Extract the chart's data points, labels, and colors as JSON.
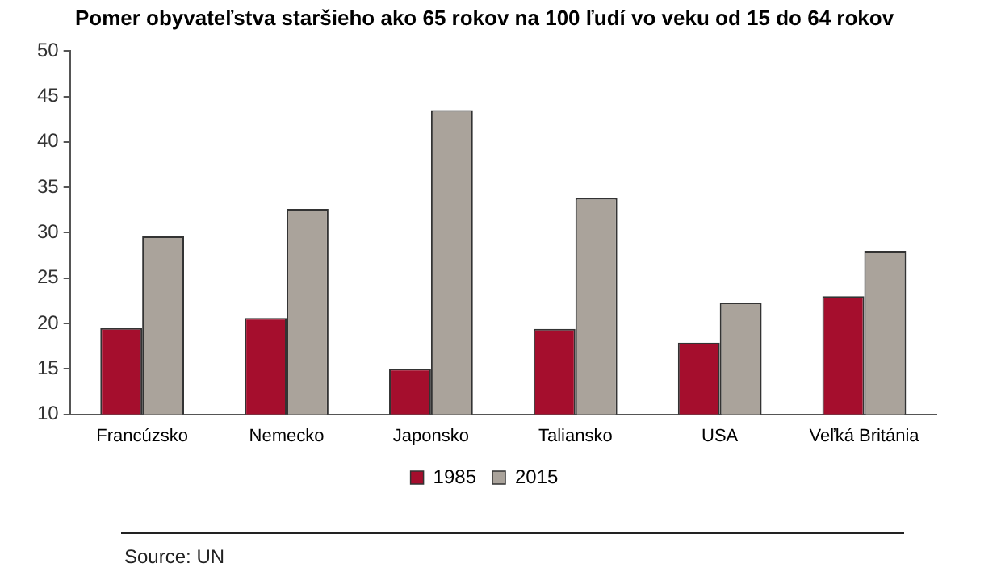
{
  "chart_data": {
    "type": "bar",
    "title": "Pomer obyvateľstva staršieho ako 65 rokov na 100 ľudí vo veku od 15 do 64 rokov",
    "categories": [
      "Francúzsko",
      "Nemecko",
      "Japonsko",
      "Taliansko",
      "USA",
      "Veľká Británia"
    ],
    "series": [
      {
        "name": "1985",
        "color": "#a50e2d",
        "values": [
          19.5,
          20.6,
          15.0,
          19.4,
          17.9,
          23.0
        ]
      },
      {
        "name": "2015",
        "color": "#aaa39b",
        "values": [
          29.6,
          32.6,
          43.5,
          33.8,
          22.3,
          28.0
        ]
      }
    ],
    "ylim": [
      10,
      50
    ],
    "yticks": [
      10,
      15,
      20,
      25,
      30,
      35,
      40,
      45,
      50
    ],
    "grid": false,
    "legend": "bottom",
    "annotations": [
      "Source: UN"
    ]
  }
}
